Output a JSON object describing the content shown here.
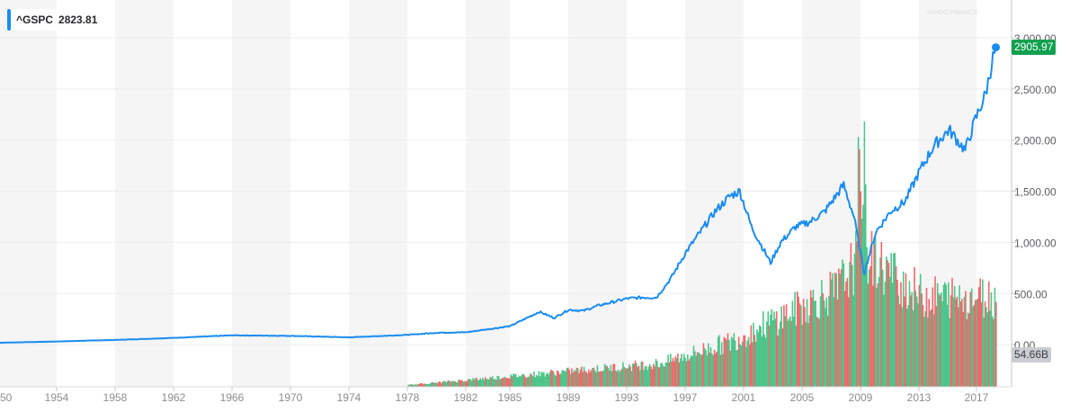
{
  "legend": {
    "symbol": "^GSPC",
    "value": "2823.81",
    "color": "#1a8cf0"
  },
  "price_tag": {
    "value": "2905.97",
    "color": "#11a050"
  },
  "volume_tag": {
    "value": "54.66B",
    "color": "#c9ccd1"
  },
  "watermark": "YAHOO FINANCE",
  "colors": {
    "line": "#1a8cf0",
    "vol_up": "#4dc58a",
    "vol_down": "#f2676a",
    "band": "#f5f5f5",
    "grid": "#ededed",
    "axis": "#c8c8c8",
    "tick_text": "#8a8d92"
  },
  "chart_data": {
    "type": "line",
    "title": "^GSPC",
    "xlabel": "",
    "ylabel": "",
    "ylim": [
      0,
      3000
    ],
    "grid": true,
    "legend_position": "top-left",
    "y_ticks": [
      "3,000.00",
      "2,500.00",
      "2,000.00",
      "1,500.00",
      "1,000.00",
      "500.00",
      "0.00"
    ],
    "x_ticks": [
      "50",
      "1954",
      "1958",
      "1962",
      "1966",
      "1970",
      "1974",
      "1978",
      "1982",
      "1985",
      "1989",
      "1993",
      "1997",
      "2001",
      "2005",
      "2009",
      "2013",
      "2017"
    ],
    "series": [
      {
        "name": "^GSPC",
        "x": [
          1950,
          1954,
          1958,
          1962,
          1966,
          1970,
          1974,
          1978,
          1980,
          1982,
          1985,
          1987,
          1988,
          1989,
          1990,
          1991,
          1993,
          1994,
          1995,
          1996,
          1997,
          1998,
          1999,
          2000,
          2000.7,
          2001.5,
          2002.8,
          2003.5,
          2004.5,
          2005.5,
          2006.5,
          2007.8,
          2008.5,
          2009.2,
          2010,
          2011,
          2012,
          2013,
          2014,
          2015,
          2016.1,
          2016.8,
          2017.5,
          2018,
          2018.2
        ],
        "values": [
          17,
          30,
          45,
          65,
          90,
          85,
          70,
          95,
          115,
          120,
          180,
          320,
          260,
          340,
          330,
          380,
          450,
          460,
          460,
          650,
          900,
          1100,
          1300,
          1450,
          1500,
          1150,
          800,
          1000,
          1150,
          1200,
          1300,
          1560,
          1250,
          700,
          1100,
          1300,
          1400,
          1700,
          1950,
          2100,
          1900,
          2200,
          2450,
          2800,
          2905.97
        ]
      }
    ],
    "volume": {
      "unit": "B",
      "last": "54.66B",
      "peak_year": 2009,
      "approx_max": 500
    }
  }
}
